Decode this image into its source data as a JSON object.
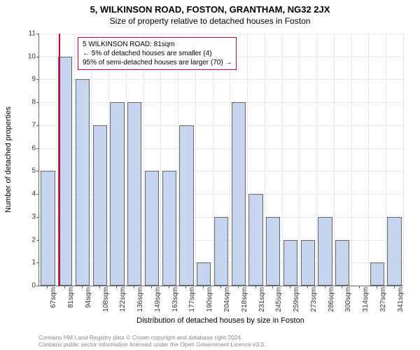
{
  "titles": {
    "line1": "5, WILKINSON ROAD, FOSTON, GRANTHAM, NG32 2JX",
    "line2": "Size of property relative to detached houses in Foston"
  },
  "chart": {
    "type": "bar",
    "ylim": [
      0,
      11
    ],
    "ytick_step": 1,
    "ylabel": "Number of detached properties",
    "xlabel": "Distribution of detached houses by size in Foston",
    "background_color": "#ffffff",
    "grid_color": "#e8e8e8",
    "axis_color": "#666666",
    "bar_fill": "#c7d4ee",
    "bar_border": "#666666",
    "label_fontsize": 11,
    "tick_fontsize": 10,
    "categories": [
      "67sqm",
      "81sqm",
      "94sqm",
      "108sqm",
      "122sqm",
      "136sqm",
      "149sqm",
      "163sqm",
      "177sqm",
      "190sqm",
      "204sqm",
      "218sqm",
      "231sqm",
      "245sqm",
      "259sqm",
      "273sqm",
      "286sqm",
      "300sqm",
      "314sqm",
      "327sqm",
      "341sqm"
    ],
    "values": [
      5,
      10,
      9,
      7,
      8,
      8,
      5,
      5,
      7,
      1,
      3,
      8,
      4,
      3,
      2,
      2,
      3,
      2,
      0,
      1,
      3
    ],
    "highlight": {
      "index": 1,
      "line_color": "#cc0033"
    }
  },
  "annotation": {
    "border_color": "#cc0033",
    "lines": {
      "l1": "5 WILKINSON ROAD: 81sqm",
      "l2": "← 5% of detached houses are smaller (4)",
      "l3": "95% of semi-detached houses are larger (70) →"
    }
  },
  "footer": {
    "l1": "Contains HM Land Registry data © Crown copyright and database right 2024.",
    "l2": "Contains public sector information licensed under the Open Government Licence v3.0."
  }
}
